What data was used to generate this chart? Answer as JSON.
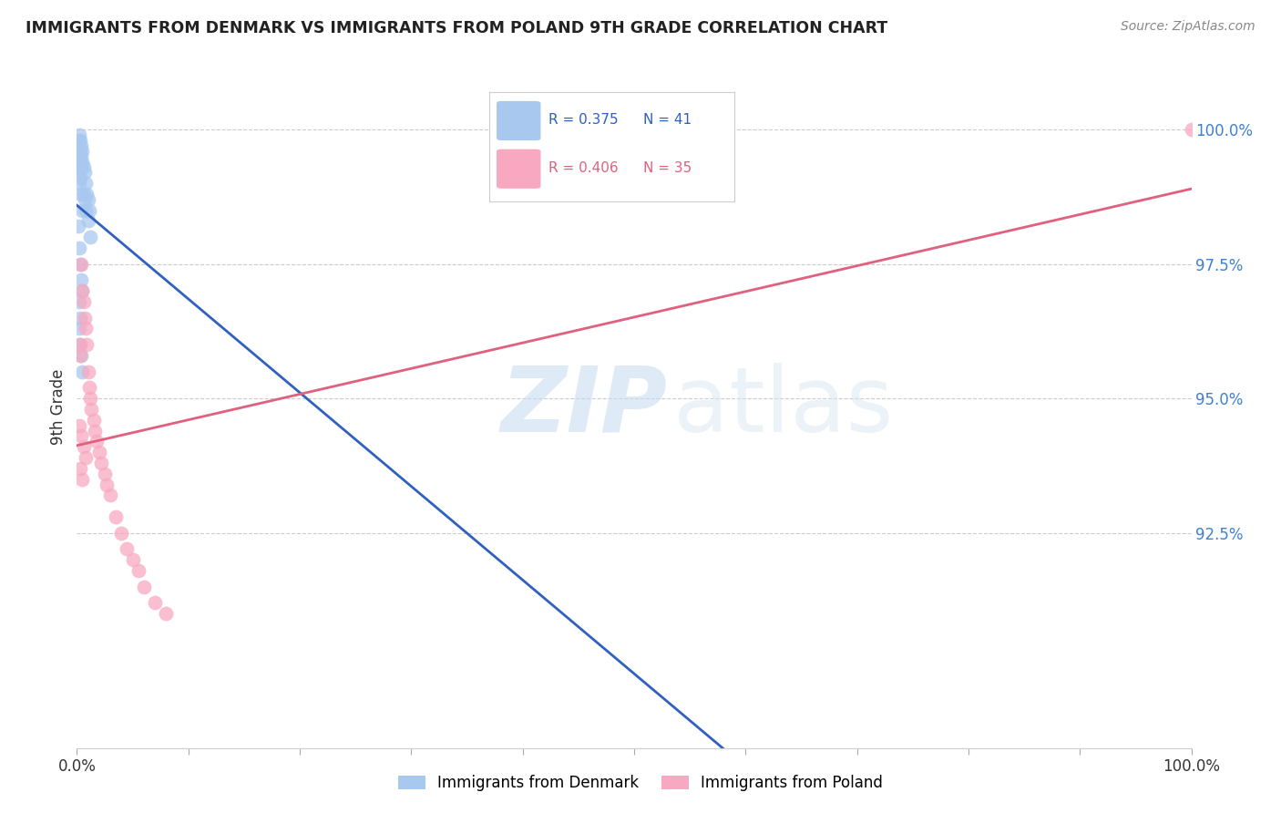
{
  "title": "IMMIGRANTS FROM DENMARK VS IMMIGRANTS FROM POLAND 9TH GRADE CORRELATION CHART",
  "source": "Source: ZipAtlas.com",
  "ylabel": "9th Grade",
  "right_ytick_vals": [
    0.925,
    0.95,
    0.975,
    1.0
  ],
  "right_ytick_labels": [
    "92.5%",
    "95.0%",
    "97.5%",
    "100.0%"
  ],
  "legend_blue_r": "R = 0.375",
  "legend_blue_n": "N = 41",
  "legend_pink_r": "R = 0.406",
  "legend_pink_n": "N = 35",
  "watermark_zip": "ZIP",
  "watermark_atlas": "atlas",
  "denmark_color": "#a8c8f0",
  "denmark_line_color": "#3060c0",
  "poland_color": "#f8a8c0",
  "poland_line_color": "#e06080",
  "background_color": "#ffffff",
  "right_tick_color": "#4080d0",
  "denmark_x": [
    0.001,
    0.001,
    0.001,
    0.002,
    0.002,
    0.002,
    0.002,
    0.002,
    0.003,
    0.003,
    0.003,
    0.003,
    0.004,
    0.004,
    0.004,
    0.004,
    0.005,
    0.005,
    0.005,
    0.006,
    0.006,
    0.007,
    0.007,
    0.008,
    0.008,
    0.009,
    0.01,
    0.01,
    0.011,
    0.012,
    0.001,
    0.002,
    0.003,
    0.004,
    0.005,
    0.002,
    0.003,
    0.002,
    0.003,
    0.004,
    0.005
  ],
  "denmark_y": [
    0.998,
    0.996,
    0.993,
    0.999,
    0.997,
    0.995,
    0.992,
    0.99,
    0.998,
    0.996,
    0.994,
    0.991,
    0.997,
    0.995,
    0.993,
    0.988,
    0.996,
    0.994,
    0.985,
    0.993,
    0.988,
    0.992,
    0.987,
    0.99,
    0.985,
    0.988,
    0.987,
    0.983,
    0.985,
    0.98,
    0.982,
    0.978,
    0.975,
    0.972,
    0.97,
    0.968,
    0.965,
    0.963,
    0.96,
    0.958,
    0.955
  ],
  "poland_x": [
    0.002,
    0.003,
    0.004,
    0.005,
    0.006,
    0.007,
    0.008,
    0.009,
    0.01,
    0.011,
    0.012,
    0.013,
    0.015,
    0.016,
    0.018,
    0.02,
    0.022,
    0.025,
    0.027,
    0.03,
    0.035,
    0.04,
    0.045,
    0.05,
    0.055,
    0.06,
    0.07,
    0.08,
    0.002,
    0.004,
    0.006,
    0.008,
    0.003,
    0.005,
    1.0
  ],
  "poland_y": [
    0.96,
    0.958,
    0.975,
    0.97,
    0.968,
    0.965,
    0.963,
    0.96,
    0.955,
    0.952,
    0.95,
    0.948,
    0.946,
    0.944,
    0.942,
    0.94,
    0.938,
    0.936,
    0.934,
    0.932,
    0.928,
    0.925,
    0.922,
    0.92,
    0.918,
    0.915,
    0.912,
    0.91,
    0.945,
    0.943,
    0.941,
    0.939,
    0.937,
    0.935,
    1.0
  ],
  "xlim": [
    0.0,
    1.0
  ],
  "ylim": [
    0.885,
    1.012
  ]
}
